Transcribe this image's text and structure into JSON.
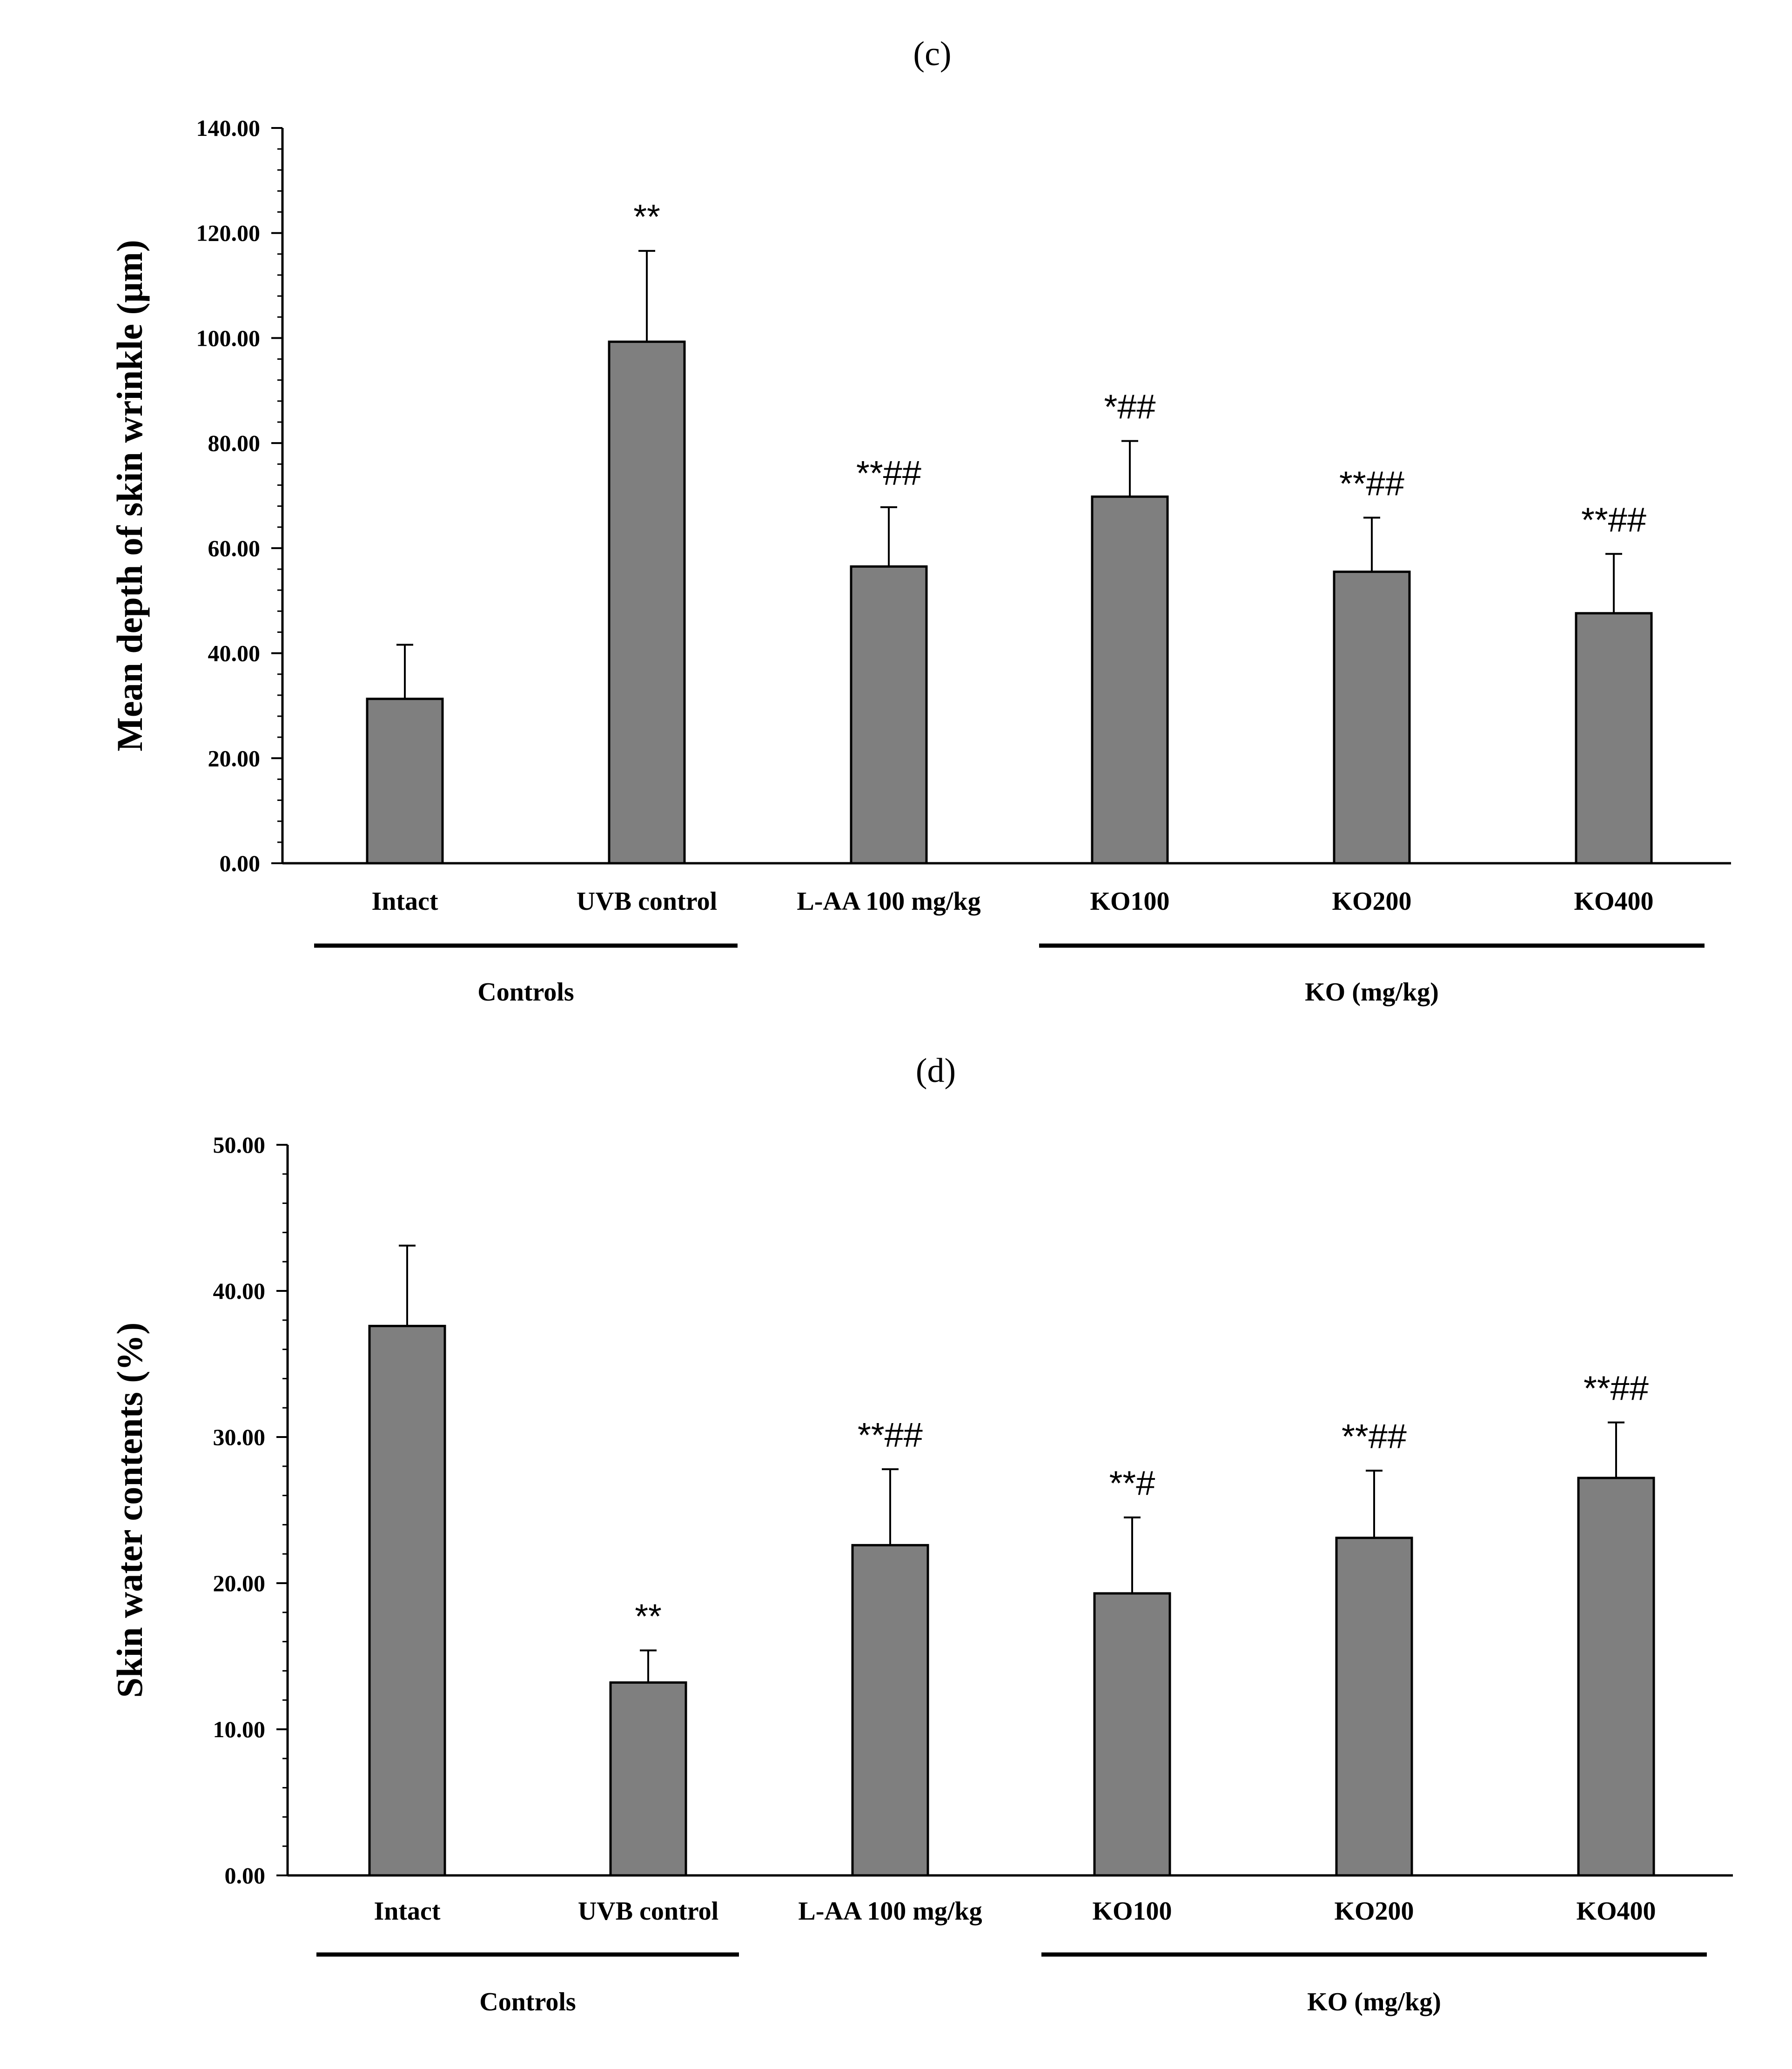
{
  "chart_data": [
    {
      "type": "bar",
      "panel_label": "(c)",
      "title": "",
      "xlabel": "",
      "ylabel": "Mean depth of skin wrinkle (μm)",
      "ylim": [
        0,
        140
      ],
      "y_ticks": [
        "0.00",
        "20.00",
        "40.00",
        "60.00",
        "80.00",
        "100.00",
        "120.00",
        "140.00"
      ],
      "y_minor_step": 4,
      "grid": false,
      "categories": [
        "Intact",
        "UVB control",
        "L-AA 100 mg/kg",
        "KO100",
        "KO200",
        "KO400"
      ],
      "values": [
        31.3,
        99.3,
        56.5,
        69.8,
        55.5,
        47.6
      ],
      "errors": [
        10.3,
        17.3,
        11.3,
        10.6,
        10.3,
        11.3
      ],
      "annotations": [
        "",
        "**",
        "**##",
        "*##",
        "**##",
        "**##"
      ],
      "groups": [
        {
          "label": "Controls",
          "from": 0,
          "to": 1
        },
        {
          "label": "KO (mg/kg)",
          "from": 3,
          "to": 5
        }
      ],
      "bar_color": "#7f7f7f"
    },
    {
      "type": "bar",
      "panel_label": "(d)",
      "title": "",
      "xlabel": "",
      "ylabel": "Skin water contents (%)",
      "ylim": [
        0,
        50
      ],
      "y_ticks": [
        "0.00",
        "10.00",
        "20.00",
        "30.00",
        "40.00",
        "50.00"
      ],
      "y_minor_step": 2,
      "grid": false,
      "categories": [
        "Intact",
        "UVB control",
        "L-AA 100 mg/kg",
        "KO100",
        "KO200",
        "KO400"
      ],
      "values": [
        37.6,
        13.2,
        22.6,
        19.3,
        23.1,
        27.2
      ],
      "errors": [
        5.5,
        2.2,
        5.2,
        5.2,
        4.6,
        3.8
      ],
      "annotations": [
        "",
        "**",
        "**##",
        "**#",
        "**##",
        "**##"
      ],
      "groups": [
        {
          "label": "Controls",
          "from": 0,
          "to": 1
        },
        {
          "label": "KO (mg/kg)",
          "from": 3,
          "to": 5
        }
      ],
      "bar_color": "#7f7f7f"
    }
  ]
}
